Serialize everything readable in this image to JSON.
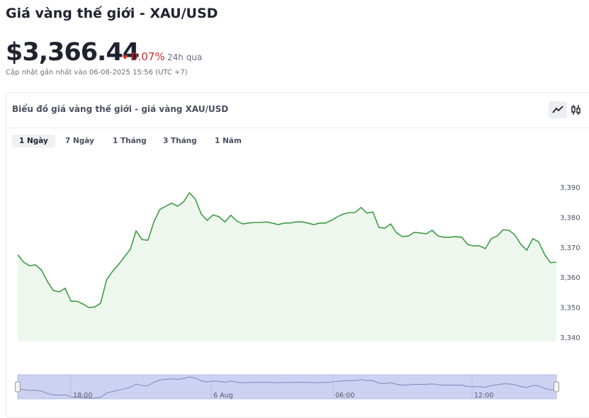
{
  "header": {
    "title": "Giá vàng thế giới - XAU/USD",
    "price": "$3,366.44",
    "change": "0.07%",
    "period": "24h qua",
    "updated": "Cập nhật gần nhất vào 06-08-2025 15:56 (UTC +7)"
  },
  "card": {
    "title": "Biểu đồ giá vàng thế giới - giá vàng XAU/USD",
    "tabs": [
      "1 Ngày",
      "7 Ngày",
      "1 Tháng",
      "3 Tháng",
      "1 Năm"
    ]
  },
  "chart_data": {
    "type": "line",
    "color": "#3f9b47",
    "values": [
      3367.4,
      3365.0,
      3363.8,
      3364.1,
      3362.4,
      3358.6,
      3355.6,
      3355.1,
      3356.3,
      3352.0,
      3352.0,
      3351.1,
      3349.9,
      3350.1,
      3351.3,
      3359.1,
      3361.9,
      3364.1,
      3366.7,
      3369.2,
      3375.4,
      3372.5,
      3372.3,
      3378.4,
      3382.5,
      3383.6,
      3384.6,
      3383.6,
      3385.0,
      3388.1,
      3386.0,
      3381.0,
      3378.9,
      3380.7,
      3380.1,
      3378.4,
      3380.6,
      3378.7,
      3377.7,
      3378.0,
      3378.2,
      3378.2,
      3378.4,
      3378.0,
      3377.5,
      3378.0,
      3378.0,
      3378.4,
      3378.4,
      3378.0,
      3377.5,
      3378.0,
      3378.0,
      3378.9,
      3380.1,
      3381.0,
      3381.5,
      3381.5,
      3383.2,
      3381.3,
      3381.7,
      3376.6,
      3376.3,
      3377.7,
      3374.7,
      3373.5,
      3373.7,
      3374.9,
      3374.7,
      3374.4,
      3375.6,
      3373.7,
      3373.3,
      3373.3,
      3373.5,
      3373.3,
      3370.9,
      3370.4,
      3370.4,
      3369.5,
      3372.8,
      3373.7,
      3375.8,
      3375.6,
      3374.0,
      3370.9,
      3369.0,
      3372.8,
      3371.8,
      3367.6,
      3364.8,
      3365.0
    ],
    "ylim": [
      3338.6,
      3398
    ],
    "yticks": [
      {
        "value": 3340,
        "label": "3,340"
      },
      {
        "value": 3350,
        "label": "3,350"
      },
      {
        "value": 3360,
        "label": "3,360"
      },
      {
        "value": 3370,
        "label": "3,370"
      },
      {
        "value": 3380,
        "label": "3,380"
      },
      {
        "value": 3390,
        "label": "3,390"
      }
    ],
    "navigator_labels": [
      "18:00",
      "6 Aug",
      "06:00",
      "12:00"
    ]
  }
}
